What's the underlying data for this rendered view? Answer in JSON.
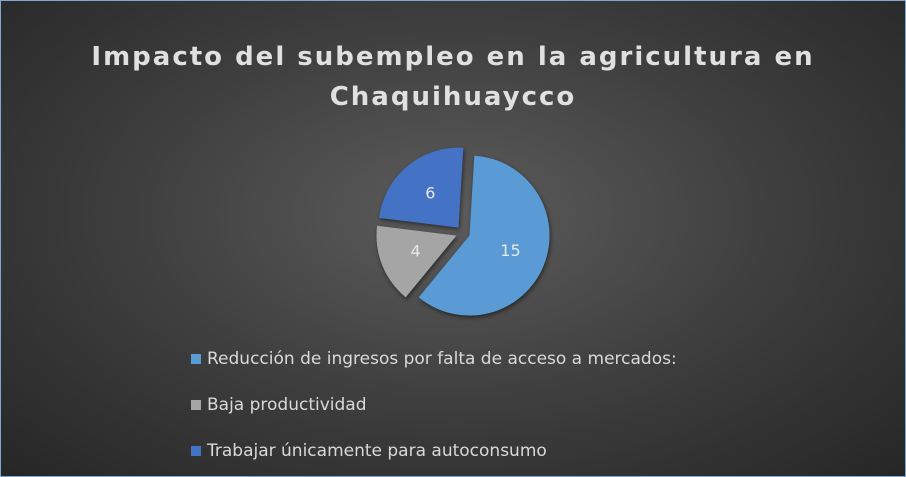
{
  "chart_data": {
    "type": "pie",
    "title": "Impacto del subempleo en la agricultura en Chaquihuaycco",
    "categories": [
      "Reducción de ingresos por falta de acceso a mercados:",
      "Baja productividad",
      "Trabajar únicamente para autoconsumo"
    ],
    "values": [
      15,
      4,
      6
    ],
    "colors": [
      "#5b9bd5",
      "#a5a5a5",
      "#4472c4"
    ],
    "legend": "bottom"
  }
}
